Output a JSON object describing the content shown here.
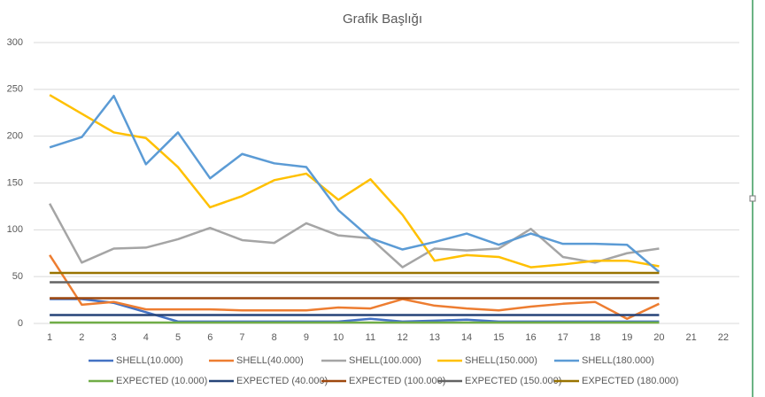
{
  "chart_data": {
    "type": "line",
    "title": "Grafik Başlığı",
    "categories": [
      "1",
      "2",
      "3",
      "4",
      "5",
      "6",
      "7",
      "8",
      "9",
      "10",
      "11",
      "12",
      "13",
      "14",
      "15",
      "16",
      "17",
      "18",
      "19",
      "20",
      "21",
      "22"
    ],
    "ylim": [
      0,
      300
    ],
    "yticks": [
      0,
      50,
      100,
      150,
      200,
      250,
      300
    ],
    "grid": true,
    "legend": "bottom",
    "series": [
      {
        "name": "SHELL(10.000)",
        "color": "#4472c4",
        "values": [
          26,
          26,
          22,
          12,
          2,
          2,
          2,
          2,
          2,
          2,
          5,
          2,
          3,
          4,
          2,
          2,
          2,
          2,
          2,
          2,
          null,
          null
        ]
      },
      {
        "name": "SHELL(40.000)",
        "color": "#ed7d31",
        "values": [
          73,
          20,
          23,
          15,
          15,
          15,
          14,
          14,
          14,
          17,
          16,
          26,
          19,
          16,
          14,
          18,
          21,
          23,
          5,
          21,
          null,
          null
        ]
      },
      {
        "name": "SHELL(100.000)",
        "color": "#a5a5a5",
        "values": [
          128,
          65,
          80,
          81,
          90,
          102,
          89,
          86,
          107,
          94,
          91,
          60,
          80,
          78,
          80,
          101,
          71,
          65,
          75,
          80,
          null,
          null
        ]
      },
      {
        "name": "SHELL(150.000)",
        "color": "#ffc000",
        "values": [
          244,
          224,
          204,
          198,
          167,
          124,
          136,
          153,
          160,
          132,
          154,
          116,
          67,
          73,
          71,
          60,
          63,
          67,
          67,
          61,
          null,
          null
        ]
      },
      {
        "name": "SHELL(180.000)",
        "color": "#5b9bd5",
        "values": [
          188,
          199,
          243,
          170,
          204,
          155,
          181,
          171,
          167,
          121,
          91,
          79,
          87,
          96,
          84,
          96,
          85,
          85,
          84,
          55,
          null,
          null
        ]
      },
      {
        "name": "EXPECTED (10.000)",
        "color": "#70ad47",
        "values": [
          1,
          1,
          1,
          1,
          1,
          1,
          1,
          1,
          1,
          1,
          1,
          1,
          1,
          1,
          1,
          1,
          1,
          1,
          1,
          1,
          null,
          null
        ]
      },
      {
        "name": "EXPECTED (40.000)",
        "color": "#264478",
        "values": [
          9,
          9,
          9,
          9,
          9,
          9,
          9,
          9,
          9,
          9,
          9,
          9,
          9,
          9,
          9,
          9,
          9,
          9,
          9,
          9,
          null,
          null
        ]
      },
      {
        "name": "EXPECTED (100.000)",
        "color": "#9e480e",
        "values": [
          27,
          27,
          27,
          27,
          27,
          27,
          27,
          27,
          27,
          27,
          27,
          27,
          27,
          27,
          27,
          27,
          27,
          27,
          27,
          27,
          null,
          null
        ]
      },
      {
        "name": "EXPECTED (150.000)",
        "color": "#636363",
        "values": [
          44,
          44,
          44,
          44,
          44,
          44,
          44,
          44,
          44,
          44,
          44,
          44,
          44,
          44,
          44,
          44,
          44,
          44,
          44,
          44,
          null,
          null
        ]
      },
      {
        "name": "EXPECTED (180.000)",
        "color": "#997300",
        "values": [
          54,
          54,
          54,
          54,
          54,
          54,
          54,
          54,
          54,
          54,
          54,
          54,
          54,
          54,
          54,
          54,
          54,
          54,
          54,
          54,
          null,
          null
        ]
      }
    ]
  }
}
